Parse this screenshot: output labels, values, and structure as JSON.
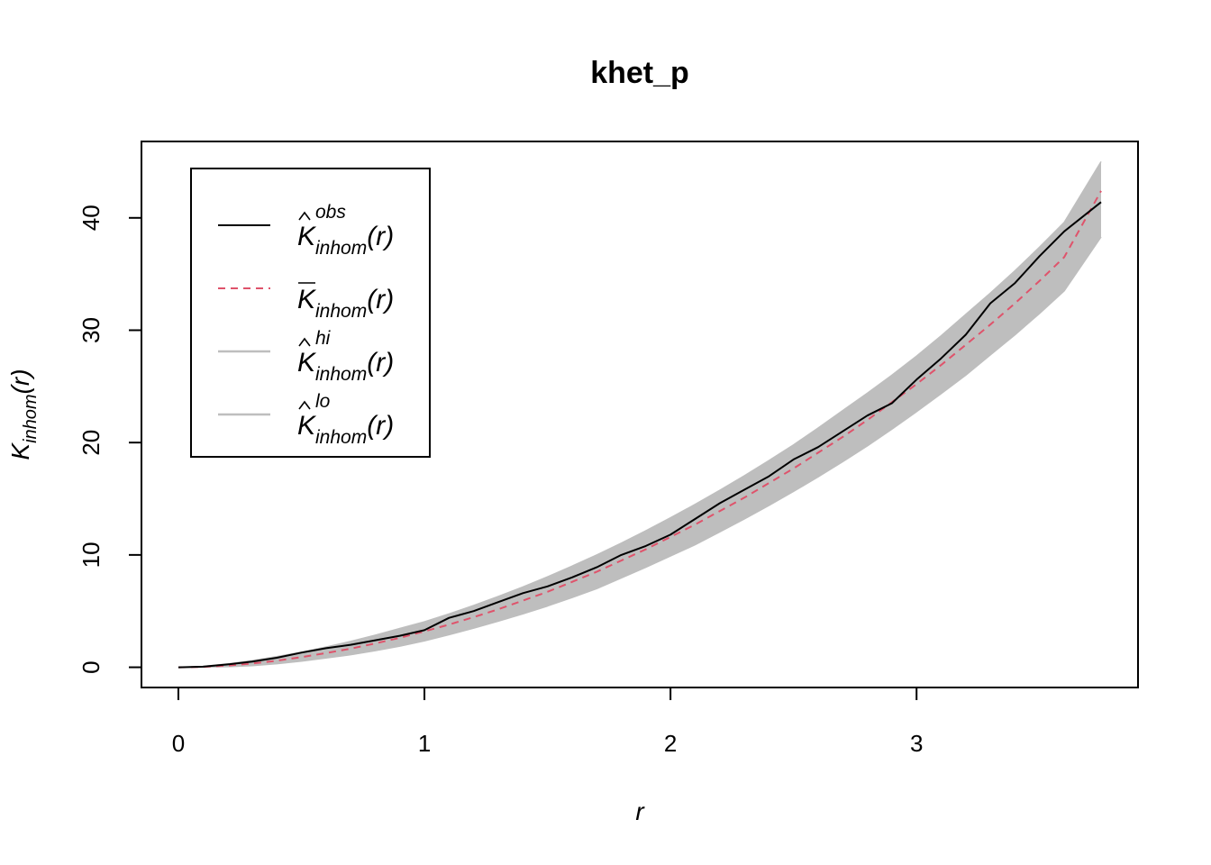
{
  "chart_data": {
    "type": "line",
    "title": "khet_p",
    "xlabel": "r",
    "ylabel": "K_inhom(r)",
    "xlim": [
      0,
      3.75
    ],
    "ylim": [
      0,
      45
    ],
    "x_ticks": [
      "0",
      "1",
      "2",
      "3"
    ],
    "y_ticks": [
      "0",
      "10",
      "20",
      "30",
      "40"
    ],
    "grid": false,
    "legend_position": "top-left",
    "colors": {
      "obs": "#000000",
      "theo": "#DF536B",
      "envelope": "#BEBEBE"
    },
    "legend": [
      {
        "key": "obs",
        "main": "K",
        "sub": "inhom",
        "sup": "obs",
        "arg": "(r)",
        "accent": "hat",
        "style": "solid",
        "color": "#000000"
      },
      {
        "key": "theo",
        "main": "K",
        "sub": "inhom",
        "sup": "",
        "arg": "(r)",
        "accent": "bar",
        "style": "dashed",
        "color": "#DF536B"
      },
      {
        "key": "hi",
        "main": "K",
        "sub": "inhom",
        "sup": "hi",
        "arg": "(r)",
        "accent": "hat",
        "style": "solid",
        "color": "#BEBEBE"
      },
      {
        "key": "lo",
        "main": "K",
        "sub": "inhom",
        "sup": "lo",
        "arg": "(r)",
        "accent": "hat",
        "style": "solid",
        "color": "#BEBEBE"
      }
    ],
    "series": [
      {
        "key": "obs",
        "x": [
          0,
          0.1,
          0.2,
          0.3,
          0.4,
          0.5,
          0.6,
          0.7,
          0.8,
          0.9,
          1.0,
          1.1,
          1.2,
          1.3,
          1.4,
          1.5,
          1.6,
          1.7,
          1.8,
          1.9,
          2.0,
          2.1,
          2.2,
          2.3,
          2.4,
          2.5,
          2.6,
          2.7,
          2.8,
          2.9,
          3.0,
          3.1,
          3.2,
          3.3,
          3.4,
          3.5,
          3.6,
          3.75
        ],
        "values": [
          0,
          0.05,
          0.25,
          0.5,
          0.85,
          1.3,
          1.7,
          2.0,
          2.4,
          2.8,
          3.3,
          4.4,
          5.0,
          5.8,
          6.6,
          7.2,
          8.0,
          8.9,
          10.0,
          10.8,
          11.8,
          13.2,
          14.6,
          15.8,
          17.0,
          18.5,
          19.6,
          21.0,
          22.4,
          23.5,
          25.6,
          27.5,
          29.6,
          32.4,
          34.2,
          36.6,
          38.8,
          41.4
        ]
      },
      {
        "key": "theo",
        "x": [
          0,
          0.1,
          0.2,
          0.3,
          0.4,
          0.5,
          0.6,
          0.7,
          0.8,
          0.9,
          1.0,
          1.1,
          1.2,
          1.3,
          1.4,
          1.5,
          1.6,
          1.7,
          1.8,
          1.9,
          2.0,
          2.1,
          2.2,
          2.3,
          2.4,
          2.5,
          2.6,
          2.7,
          2.8,
          2.9,
          3.0,
          3.1,
          3.2,
          3.3,
          3.4,
          3.5,
          3.6,
          3.75
        ],
        "values": [
          0,
          0.04,
          0.15,
          0.33,
          0.58,
          0.9,
          1.26,
          1.66,
          2.12,
          2.62,
          3.2,
          3.8,
          4.46,
          5.16,
          5.93,
          6.72,
          7.6,
          8.5,
          9.5,
          10.5,
          11.6,
          12.7,
          13.9,
          15.1,
          16.4,
          17.7,
          19.1,
          20.5,
          22.0,
          23.6,
          25.2,
          26.9,
          28.7,
          30.5,
          32.4,
          34.4,
          36.5,
          42.4
        ]
      },
      {
        "key": "hi",
        "x": [
          0,
          0.1,
          0.2,
          0.3,
          0.4,
          0.5,
          0.6,
          0.7,
          0.8,
          0.9,
          1.0,
          1.1,
          1.2,
          1.3,
          1.4,
          1.5,
          1.6,
          1.7,
          1.8,
          1.9,
          2.0,
          2.1,
          2.2,
          2.3,
          2.4,
          2.5,
          2.6,
          2.7,
          2.8,
          2.9,
          3.0,
          3.1,
          3.2,
          3.3,
          3.4,
          3.5,
          3.6,
          3.75
        ],
        "values": [
          0,
          0.08,
          0.3,
          0.6,
          0.95,
          1.35,
          1.8,
          2.3,
          2.85,
          3.45,
          4.05,
          4.75,
          5.5,
          6.3,
          7.15,
          8.05,
          9.0,
          10.0,
          11.05,
          12.15,
          13.3,
          14.5,
          15.75,
          17.05,
          18.4,
          19.8,
          21.3,
          22.85,
          24.4,
          26.0,
          27.7,
          29.5,
          31.4,
          33.3,
          35.3,
          37.4,
          39.6,
          45.0
        ]
      },
      {
        "key": "lo",
        "x": [
          0,
          0.1,
          0.2,
          0.3,
          0.4,
          0.5,
          0.6,
          0.7,
          0.8,
          0.9,
          1.0,
          1.1,
          1.2,
          1.3,
          1.4,
          1.5,
          1.6,
          1.7,
          1.8,
          1.9,
          2.0,
          2.1,
          2.2,
          2.3,
          2.4,
          2.5,
          2.6,
          2.7,
          2.8,
          2.9,
          3.0,
          3.1,
          3.2,
          3.3,
          3.4,
          3.5,
          3.6,
          3.75
        ],
        "values": [
          0,
          0.01,
          0.05,
          0.15,
          0.32,
          0.55,
          0.82,
          1.12,
          1.48,
          1.88,
          2.35,
          2.9,
          3.48,
          4.1,
          4.75,
          5.45,
          6.2,
          7.0,
          7.95,
          8.9,
          9.9,
          10.9,
          12.05,
          13.2,
          14.4,
          15.65,
          16.95,
          18.3,
          19.7,
          21.2,
          22.75,
          24.35,
          26.0,
          27.8,
          29.6,
          31.5,
          33.5,
          38.3
        ]
      }
    ]
  }
}
